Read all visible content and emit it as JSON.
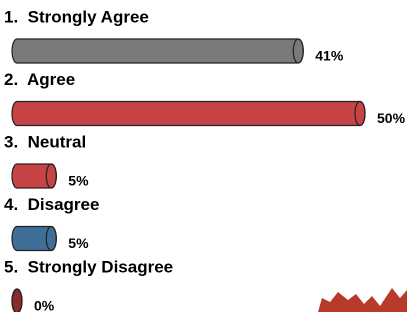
{
  "chart_data": {
    "type": "bar",
    "orientation": "horizontal",
    "categories": [
      "1.  Strongly Agree",
      "2.  Agree",
      "3.  Neutral",
      "4.  Disagree",
      "5.  Strongly Disagree"
    ],
    "values": [
      41,
      50,
      5,
      5,
      0
    ],
    "value_labels": [
      "41%",
      "50%",
      "5%",
      "5%",
      "0%"
    ],
    "colors": [
      "#7a7a7a",
      "#c84444",
      "#c84444",
      "#3f6e99",
      "#8a2a2a"
    ]
  }
}
